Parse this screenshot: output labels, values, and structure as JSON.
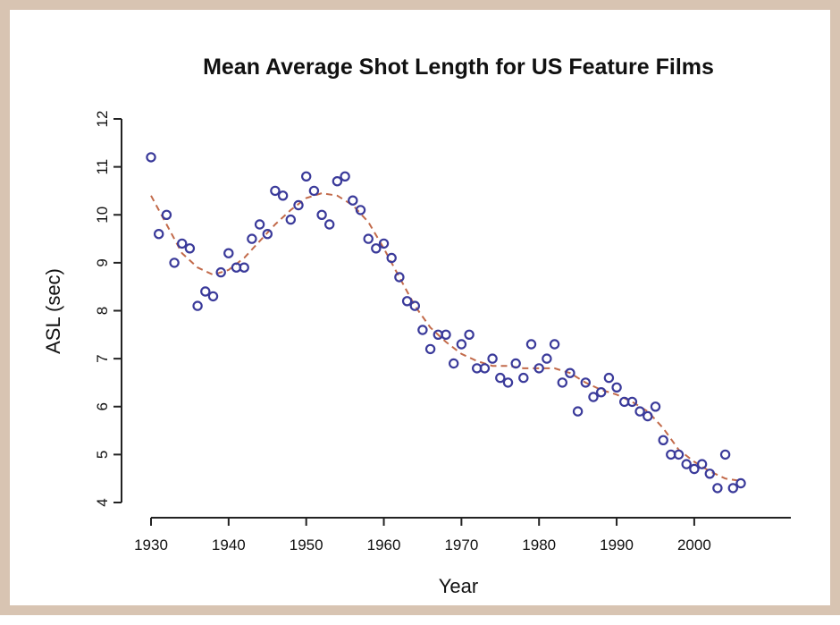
{
  "chart_data": {
    "type": "scatter",
    "title": "Mean Average Shot Length for US Feature Films",
    "xlabel": "Year",
    "ylabel": "ASL (sec)",
    "xlim": [
      1930,
      2006
    ],
    "ylim": [
      4,
      12
    ],
    "xticks": [
      1930,
      1940,
      1950,
      1960,
      1970,
      1980,
      1990,
      2000
    ],
    "yticks": [
      4,
      5,
      6,
      7,
      8,
      9,
      10,
      11,
      12
    ],
    "grid": false,
    "legend": "none",
    "colors": {
      "points": "#3a3a9a",
      "trend": "#c26a4a",
      "frame": "#d8c4b2",
      "axis": "#222222"
    },
    "series": [
      {
        "marker": "open-circle",
        "x": [
          1930,
          1931,
          1932,
          1933,
          1934,
          1935,
          1936,
          1937,
          1938,
          1939,
          1940,
          1941,
          1942,
          1943,
          1944,
          1945,
          1946,
          1947,
          1948,
          1949,
          1950,
          1951,
          1952,
          1953,
          1954,
          1955,
          1956,
          1957,
          1958,
          1959,
          1960,
          1961,
          1962,
          1963,
          1964,
          1965,
          1966,
          1967,
          1968,
          1969,
          1970,
          1971,
          1972,
          1973,
          1974,
          1975,
          1976,
          1977,
          1978,
          1979,
          1980,
          1981,
          1982,
          1983,
          1984,
          1985,
          1986,
          1987,
          1988,
          1989,
          1990,
          1991,
          1992,
          1993,
          1994,
          1995,
          1996,
          1997,
          1998,
          1999,
          2000,
          2001,
          2002,
          2003,
          2004,
          2005,
          2006
        ],
        "y": [
          11.2,
          9.6,
          10.0,
          9.0,
          9.4,
          9.3,
          8.1,
          8.4,
          8.3,
          8.8,
          9.2,
          8.9,
          8.9,
          9.5,
          9.8,
          9.6,
          10.5,
          10.4,
          9.9,
          10.2,
          10.8,
          10.5,
          10.0,
          9.8,
          10.7,
          10.8,
          10.3,
          10.1,
          9.5,
          9.3,
          9.4,
          9.1,
          8.7,
          8.2,
          8.1,
          7.6,
          7.2,
          7.5,
          7.5,
          6.9,
          7.3,
          7.5,
          6.8,
          6.8,
          7.0,
          6.6,
          6.5,
          6.9,
          6.6,
          7.3,
          6.8,
          7.0,
          7.3,
          6.5,
          6.7,
          5.9,
          6.5,
          6.2,
          6.3,
          6.6,
          6.4,
          6.1,
          6.1,
          5.9,
          5.8,
          6.0,
          5.3,
          5.0,
          5.0,
          4.8,
          4.7,
          4.8,
          4.6,
          4.3,
          5.0,
          4.3,
          4.4
        ]
      }
    ],
    "trend": {
      "style": "dashed",
      "x": [
        1930,
        1932,
        1934,
        1936,
        1938,
        1940,
        1942,
        1944,
        1946,
        1948,
        1950,
        1952,
        1954,
        1956,
        1958,
        1960,
        1962,
        1964,
        1966,
        1968,
        1970,
        1972,
        1974,
        1976,
        1978,
        1980,
        1982,
        1984,
        1986,
        1988,
        1990,
        1992,
        1994,
        1996,
        1998,
        2000,
        2002,
        2004,
        2006
      ],
      "y": [
        10.4,
        9.8,
        9.2,
        8.9,
        8.75,
        8.85,
        9.1,
        9.45,
        9.8,
        10.1,
        10.35,
        10.45,
        10.4,
        10.2,
        9.85,
        9.3,
        8.7,
        8.1,
        7.65,
        7.35,
        7.1,
        6.95,
        6.85,
        6.85,
        6.8,
        6.8,
        6.8,
        6.7,
        6.5,
        6.35,
        6.25,
        6.1,
        5.9,
        5.55,
        5.1,
        4.85,
        4.65,
        4.5,
        4.45
      ]
    }
  }
}
